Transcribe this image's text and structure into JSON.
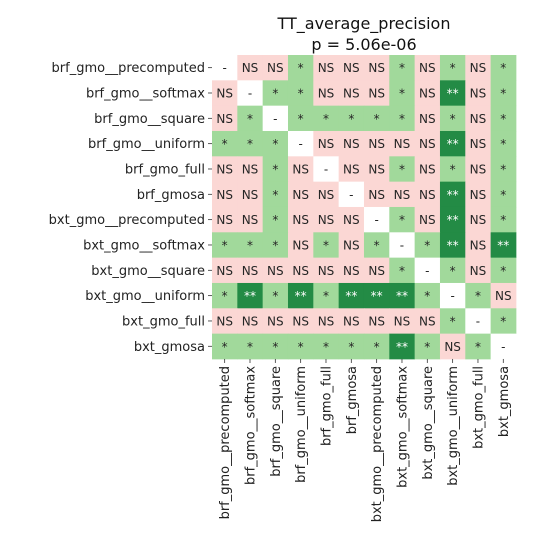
{
  "chart_data": {
    "type": "heatmap",
    "title": "TT_average_precision",
    "subtitle": "p = 5.06e-06",
    "labels": [
      "brf_gmo__precomputed",
      "brf_gmo__softmax",
      "brf_gmo__square",
      "brf_gmo__uniform",
      "brf_gmo_full",
      "brf_gmosa",
      "bxt_gmo__precomputed",
      "bxt_gmo__softmax",
      "bxt_gmo__square",
      "bxt_gmo__uniform",
      "bxt_gmo_full",
      "bxt_gmosa"
    ],
    "cells": [
      [
        "-",
        "NS",
        "NS",
        "*",
        "NS",
        "NS",
        "NS",
        "*",
        "NS",
        "*",
        "NS",
        "*"
      ],
      [
        "NS",
        "-",
        "*",
        "*",
        "NS",
        "NS",
        "NS",
        "*",
        "NS",
        "**",
        "NS",
        "*"
      ],
      [
        "NS",
        "*",
        "-",
        "*",
        "*",
        "*",
        "*",
        "*",
        "NS",
        "*",
        "NS",
        "*"
      ],
      [
        "*",
        "*",
        "*",
        "-",
        "NS",
        "NS",
        "NS",
        "NS",
        "NS",
        "**",
        "NS",
        "*"
      ],
      [
        "NS",
        "NS",
        "*",
        "NS",
        "-",
        "NS",
        "NS",
        "*",
        "NS",
        "*",
        "NS",
        "*"
      ],
      [
        "NS",
        "NS",
        "*",
        "NS",
        "NS",
        "-",
        "NS",
        "NS",
        "NS",
        "**",
        "NS",
        "*"
      ],
      [
        "NS",
        "NS",
        "*",
        "NS",
        "NS",
        "NS",
        "-",
        "*",
        "NS",
        "**",
        "NS",
        "*"
      ],
      [
        "*",
        "*",
        "*",
        "NS",
        "*",
        "NS",
        "*",
        "-",
        "*",
        "**",
        "NS",
        "**"
      ],
      [
        "NS",
        "NS",
        "NS",
        "NS",
        "NS",
        "NS",
        "NS",
        "*",
        "-",
        "*",
        "NS",
        "*"
      ],
      [
        "*",
        "**",
        "*",
        "**",
        "*",
        "**",
        "**",
        "**",
        "*",
        "-",
        "*",
        "NS"
      ],
      [
        "NS",
        "NS",
        "NS",
        "NS",
        "NS",
        "NS",
        "NS",
        "NS",
        "NS",
        "*",
        "-",
        "*"
      ],
      [
        "*",
        "*",
        "*",
        "*",
        "*",
        "*",
        "*",
        "**",
        "*",
        "NS",
        "*",
        "-"
      ]
    ],
    "colors": {
      "NS": "#fbd7d4",
      "*": "#a1d99b",
      "**": "#238b45",
      "-": "#ffffff"
    },
    "text_colors": {
      "NS": "#262626",
      "*": "#262626",
      "**": "#ffffff",
      "-": "#262626"
    },
    "grid": false,
    "legend": "none"
  }
}
